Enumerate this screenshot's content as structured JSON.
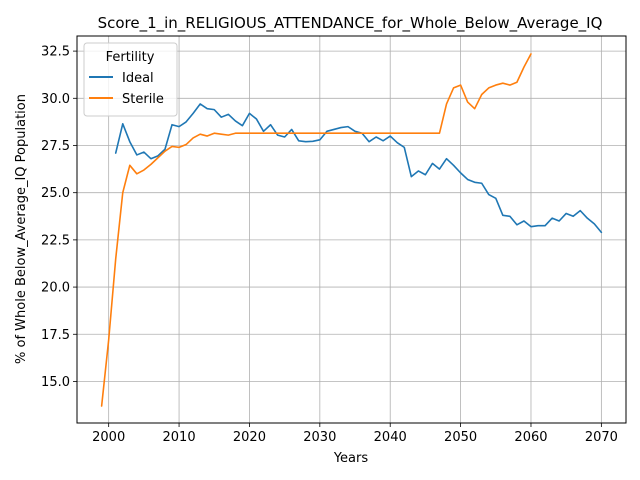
{
  "chart_data": {
    "type": "line",
    "title": "Score_1_in_RELIGIOUS_ATTENDANCE_for_Whole_Below_Average_IQ",
    "xlabel": "Years",
    "ylabel": "% of Whole Below_Average_IQ Population",
    "xlim": [
      1995.5,
      2073.5
    ],
    "ylim": [
      12.8,
      33.3
    ],
    "xticks": [
      2000,
      2010,
      2020,
      2030,
      2040,
      2050,
      2060,
      2070
    ],
    "yticks": [
      15.0,
      17.5,
      20.0,
      22.5,
      25.0,
      27.5,
      30.0,
      32.5
    ],
    "grid": true,
    "legend": {
      "title": "Fertility",
      "placement": "top-left"
    },
    "series": [
      {
        "name": "Ideal",
        "color": "#1f77b4",
        "x": [
          2001,
          2002,
          2003,
          2004,
          2005,
          2006,
          2007,
          2008,
          2009,
          2010,
          2011,
          2012,
          2013,
          2014,
          2015,
          2016,
          2017,
          2018,
          2019,
          2020,
          2021,
          2022,
          2023,
          2024,
          2025,
          2026,
          2027,
          2028,
          2029,
          2030,
          2031,
          2032,
          2033,
          2034,
          2035,
          2036,
          2037,
          2038,
          2039,
          2040,
          2041,
          2042,
          2043,
          2044,
          2045,
          2046,
          2047,
          2048,
          2049,
          2050,
          2051,
          2052,
          2053,
          2054,
          2055,
          2056,
          2057,
          2058,
          2059,
          2060,
          2061,
          2062,
          2063,
          2064,
          2065,
          2066,
          2067,
          2068,
          2069,
          2070
        ],
        "values": [
          27.1,
          28.65,
          27.7,
          27.0,
          27.15,
          26.8,
          26.95,
          27.3,
          28.6,
          28.5,
          28.75,
          29.2,
          29.7,
          29.45,
          29.4,
          29.0,
          29.15,
          28.8,
          28.55,
          29.2,
          28.9,
          28.25,
          28.6,
          28.05,
          27.95,
          28.35,
          27.75,
          27.7,
          27.72,
          27.8,
          28.25,
          28.35,
          28.45,
          28.5,
          28.25,
          28.15,
          27.7,
          27.95,
          27.75,
          28.0,
          27.65,
          27.4,
          25.85,
          26.15,
          25.95,
          26.55,
          26.25,
          26.8,
          26.45,
          26.05,
          25.7,
          25.55,
          25.5,
          24.9,
          24.7,
          23.8,
          23.75,
          23.3,
          23.5,
          23.2,
          23.25,
          23.25,
          23.65,
          23.5,
          23.9,
          23.75,
          24.05,
          23.65,
          23.35,
          22.9
        ]
      },
      {
        "name": "Sterile",
        "color": "#ff7f0e",
        "x": [
          1999,
          2000,
          2001,
          2002,
          2003,
          2004,
          2005,
          2006,
          2007,
          2008,
          2009,
          2010,
          2011,
          2012,
          2013,
          2014,
          2015,
          2016,
          2017,
          2018,
          2019,
          2020,
          2021,
          2022,
          2023,
          2024,
          2025,
          2026,
          2027,
          2028,
          2029,
          2030,
          2031,
          2032,
          2033,
          2034,
          2035,
          2036,
          2037,
          2038,
          2039,
          2040,
          2041,
          2042,
          2043,
          2044,
          2045,
          2046,
          2047,
          2048,
          2049,
          2050,
          2051,
          2052,
          2053,
          2054,
          2055,
          2056,
          2057,
          2058,
          2059,
          2060
        ],
        "values": [
          13.7,
          17.2,
          21.5,
          25.0,
          26.45,
          26.0,
          26.2,
          26.5,
          26.85,
          27.2,
          27.45,
          27.4,
          27.55,
          27.9,
          28.1,
          28.0,
          28.15,
          28.1,
          28.05,
          28.15,
          28.15,
          28.15,
          28.15,
          28.15,
          28.15,
          28.15,
          28.15,
          28.15,
          28.15,
          28.15,
          28.15,
          28.15,
          28.15,
          28.15,
          28.15,
          28.15,
          28.15,
          28.15,
          28.15,
          28.15,
          28.15,
          28.15,
          28.15,
          28.15,
          28.15,
          28.15,
          28.15,
          28.15,
          28.15,
          29.7,
          30.55,
          30.7,
          29.8,
          29.45,
          30.2,
          30.55,
          30.7,
          30.8,
          30.7,
          30.85,
          31.65,
          32.35
        ]
      }
    ]
  }
}
